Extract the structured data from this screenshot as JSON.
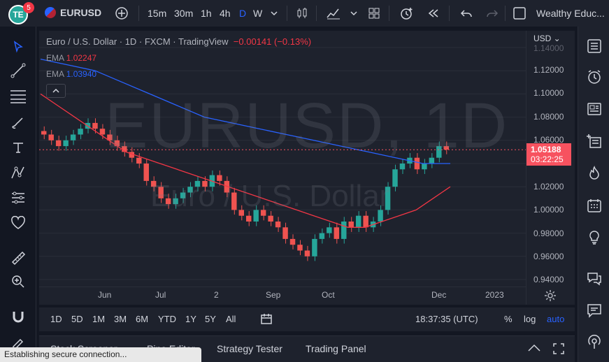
{
  "topbar": {
    "logo_text": "TE",
    "notification_count": "5",
    "symbol": "EURUSD",
    "intervals": [
      "15m",
      "30m",
      "1h",
      "4h",
      "D",
      "W"
    ],
    "active_interval": "D",
    "account_name": "Wealthy Educ..."
  },
  "legend": {
    "title": "Euro / U.S. Dollar · 1D · FXCM · TradingView",
    "change": "−0.00141 (−0.13%)",
    "ema1_label": "EMA",
    "ema1_value": "1.02247",
    "ema2_label": "EMA",
    "ema2_value": "1.03940"
  },
  "watermark": {
    "symbol_line": "EURUSD, 1D",
    "name_line": "Euro / U.S. Dollar"
  },
  "price_scale": {
    "currency": "USD",
    "ticks": [
      "1.14000",
      "1.12000",
      "1.10000",
      "1.08000",
      "1.06000",
      "1.04000",
      "1.02000",
      "1.00000",
      "0.98000",
      "0.96000",
      "0.94000"
    ],
    "current_price": "1.05188",
    "countdown": "03:22:25"
  },
  "time_axis": {
    "ticks": [
      "Jun",
      "Jul",
      "2",
      "Sep",
      "Oct",
      "Dec",
      "2023"
    ]
  },
  "bottombar": {
    "ranges": [
      "1D",
      "5D",
      "1M",
      "3M",
      "6M",
      "YTD",
      "1Y",
      "5Y",
      "All"
    ],
    "clock": "18:37:35 (UTC)",
    "percent": "%",
    "log": "log",
    "auto": "auto"
  },
  "panelbar": {
    "tabs": [
      "Stock Screener",
      "Pine Editor",
      "Strategy Tester",
      "Trading Panel"
    ]
  },
  "status_toast": "Establishing secure connection...",
  "colors": {
    "up": "#26a69a",
    "down": "#ef5350",
    "ema_fast": "#f23645",
    "ema_slow": "#2962ff",
    "accent": "#2962ff"
  },
  "chart_data": {
    "type": "candlestick",
    "ylim": [
      0.94,
      1.14
    ],
    "close_approx": [
      1.065,
      1.06,
      1.055,
      1.06,
      1.065,
      1.07,
      1.075,
      1.07,
      1.065,
      1.06,
      1.055,
      1.05,
      1.045,
      1.04,
      1.025,
      1.02,
      1.01,
      1.005,
      1.01,
      1.015,
      1.02,
      1.025,
      1.02,
      1.03,
      1.025,
      1.015,
      1.0,
      0.995,
      0.99,
      1.0,
      0.995,
      0.99,
      0.985,
      0.975,
      0.97,
      0.965,
      0.96,
      0.975,
      0.98,
      0.985,
      0.975,
      0.99,
      0.985,
      0.995,
      0.985,
      0.99,
      1.0,
      1.02,
      1.035,
      1.04,
      1.045,
      1.035,
      1.04,
      1.045,
      1.055,
      1.052
    ],
    "ema_fast_approx": [
      1.1,
      1.09,
      1.08,
      1.07,
      1.06,
      1.05,
      1.045,
      1.04,
      1.035,
      1.03,
      1.025,
      1.02,
      1.015,
      1.01,
      1.005,
      1.0,
      0.995,
      0.99,
      0.985,
      0.985,
      0.99,
      0.995,
      1.0,
      1.01,
      1.02
    ],
    "ema_slow_approx": [
      1.13,
      1.125,
      1.12,
      1.11,
      1.1,
      1.09,
      1.08,
      1.075,
      1.07,
      1.065,
      1.06,
      1.055,
      1.05,
      1.045,
      1.04,
      1.04
    ]
  }
}
